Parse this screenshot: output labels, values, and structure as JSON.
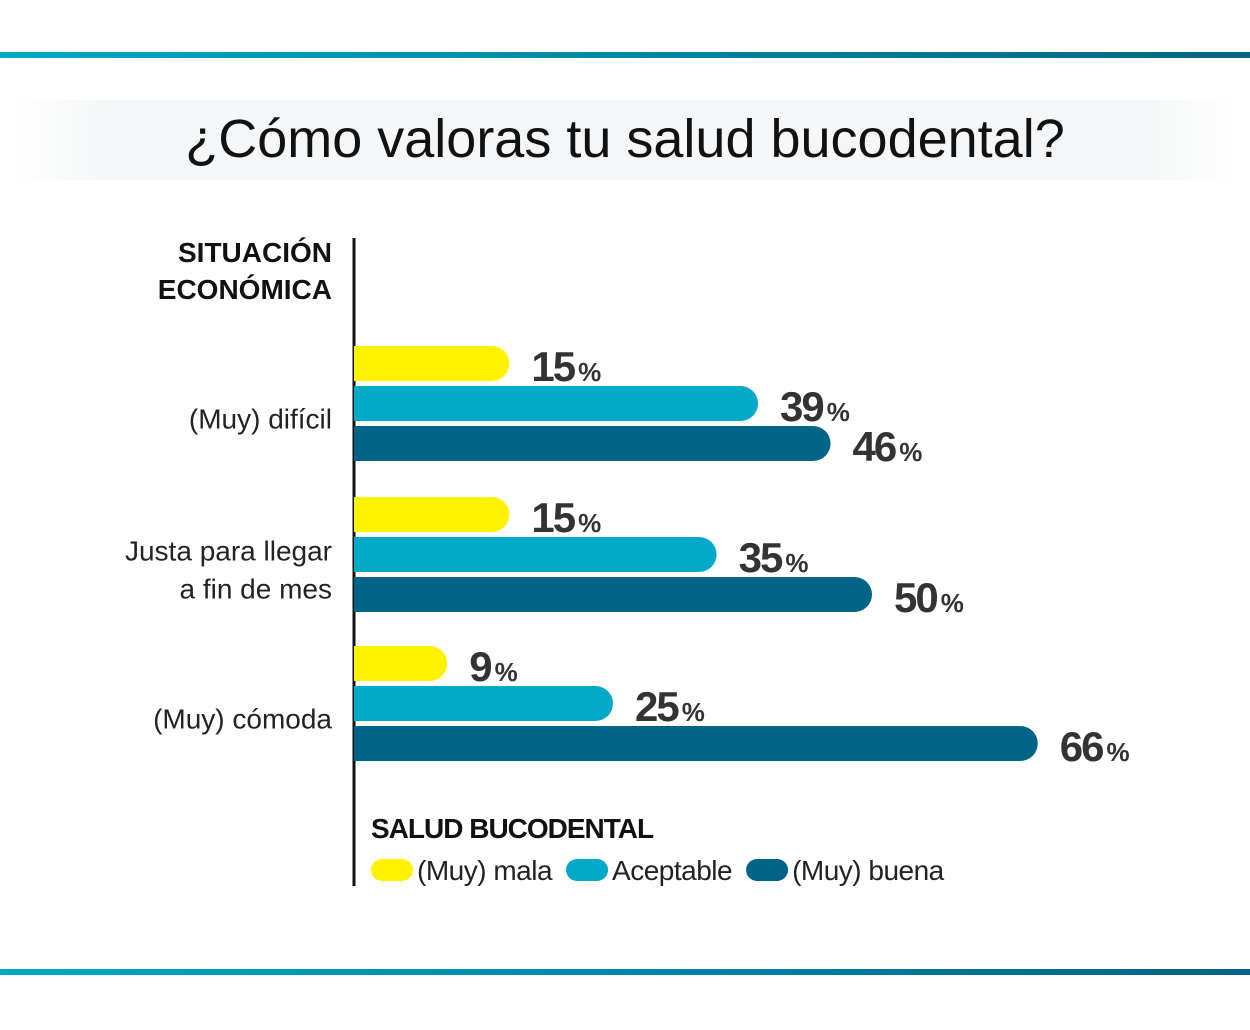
{
  "chart_data": {
    "type": "bar",
    "orientation": "horizontal",
    "title": "¿Cómo valoras tu salud bucodental?",
    "ylabel": "SITUACIÓN ECONÓMICA",
    "legend_title": "SALUD BUCODENTAL",
    "legend_placement": "bottom",
    "categories": [
      [
        "(Muy) difícil"
      ],
      [
        "Justa para llegar",
        "a fin de mes"
      ],
      [
        "(Muy) cómoda"
      ]
    ],
    "series": [
      {
        "name": "(Muy) mala",
        "color": "#FFF200",
        "values": [
          15,
          15,
          9
        ]
      },
      {
        "name": "Aceptable",
        "color": "#00A9C6",
        "values": [
          39,
          35,
          25
        ]
      },
      {
        "name": "(Muy) buena",
        "color": "#006486",
        "values": [
          46,
          50,
          66
        ]
      }
    ],
    "unit": "%",
    "grid": false
  }
}
